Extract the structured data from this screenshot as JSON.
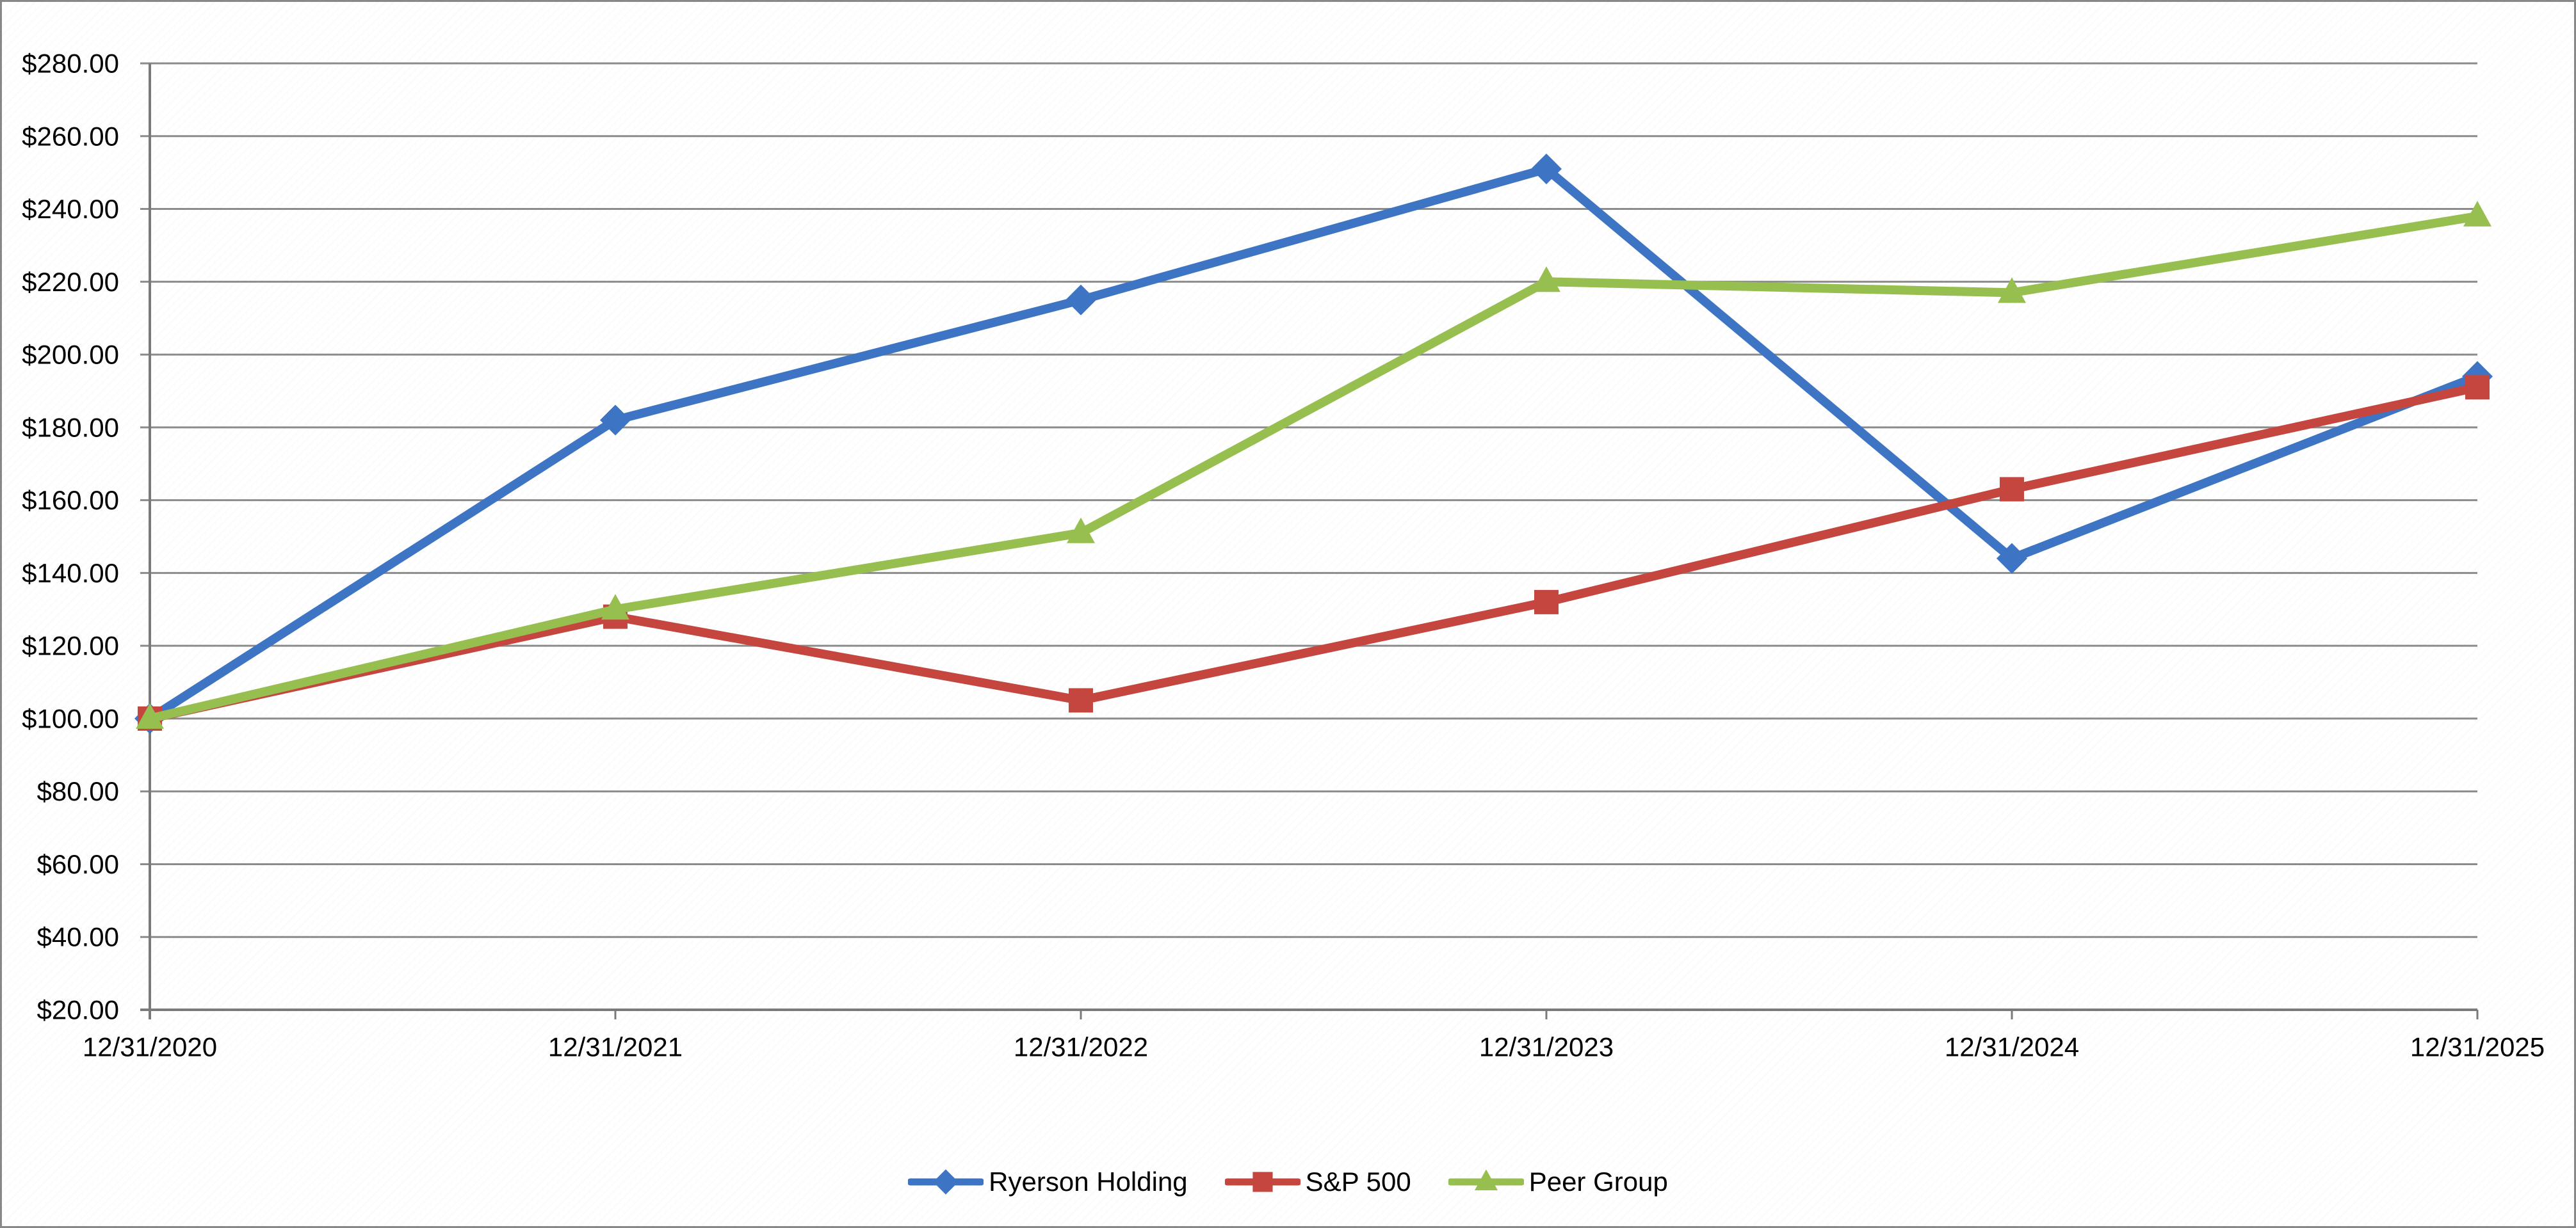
{
  "chart_data": {
    "type": "line",
    "title": "",
    "xlabel": "",
    "ylabel": "",
    "x": [
      "12/31/2020",
      "12/31/2021",
      "12/31/2022",
      "12/31/2023",
      "12/31/2024",
      "12/31/2025"
    ],
    "series": [
      {
        "name": "Ryerson Holding",
        "color": "#3D74C4",
        "marker": "diamond",
        "values": [
          100.0,
          182.0,
          215.0,
          251.0,
          144.0,
          194.0
        ]
      },
      {
        "name": "S&P 500",
        "color": "#C5463F",
        "marker": "square",
        "values": [
          100.0,
          128.0,
          105.0,
          132.0,
          163.0,
          191.0
        ]
      },
      {
        "name": "Peer Group",
        "color": "#97BF4F",
        "marker": "triangle",
        "values": [
          100.0,
          130.0,
          151.0,
          220.0,
          217.0,
          238.0
        ]
      }
    ],
    "y_axis": {
      "min": 20,
      "max": 280,
      "step": 20,
      "tick_labels": [
        "$280.00",
        "$260.00",
        "$240.00",
        "$220.00",
        "$200.00",
        "$180.00",
        "$160.00",
        "$140.00",
        "$120.00",
        "$100.00",
        "$80.00",
        "$60.00",
        "$40.00",
        "$20.00"
      ]
    },
    "grid": true,
    "legend_position": "bottom",
    "colors": {
      "gridline": "#8B8B8B",
      "axis": "#7A7A7A",
      "text": "#000000",
      "background": "#FFFFFF"
    }
  }
}
